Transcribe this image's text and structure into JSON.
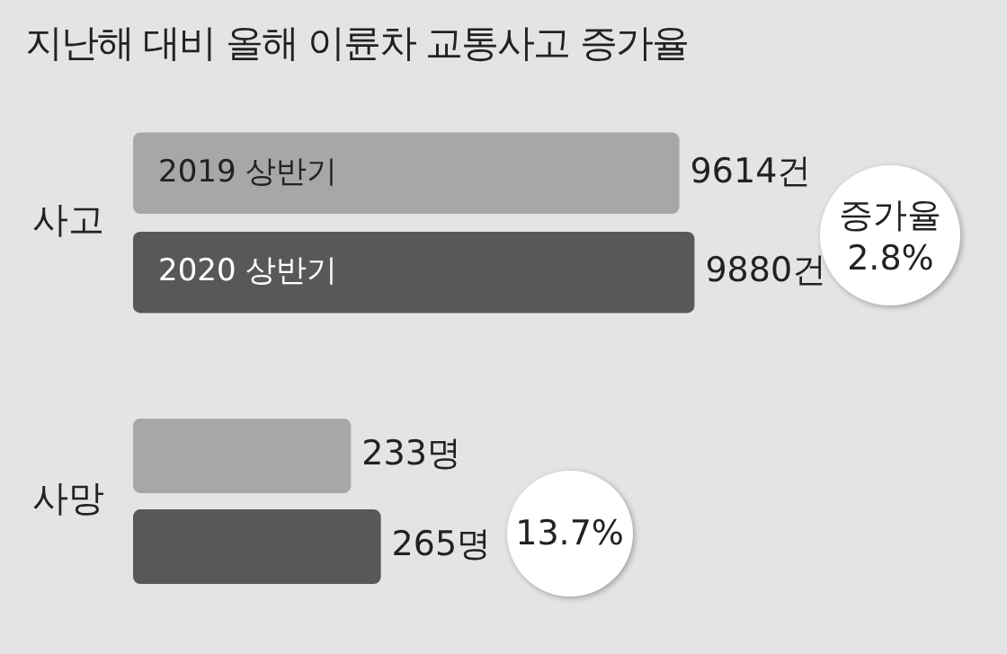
{
  "chart_data": [
    {
      "type": "bar",
      "orientation": "horizontal",
      "title": "지난해 대비 올해 이륜차 교통사고 증가율",
      "categories": [
        "사고"
      ],
      "tick_labels": "y",
      "legend": false,
      "series": [
        {
          "name": "2019 상반기",
          "color": "#a7a7aa",
          "values": [
            9614
          ],
          "value_labels": [
            "9614건"
          ]
        },
        {
          "name": "2020 상반기",
          "color": "#58585a",
          "values": [
            9880
          ],
          "value_labels": [
            "9880건"
          ]
        }
      ],
      "annotations": [
        "증가율 2.8%"
      ]
    },
    {
      "type": "bar",
      "orientation": "horizontal",
      "categories": [
        "사망"
      ],
      "tick_labels": "y",
      "legend": false,
      "series": [
        {
          "color": "#a7a7aa",
          "values": [
            233
          ],
          "value_labels": [
            "233명"
          ]
        },
        {
          "color": "#58585a",
          "values": [
            265
          ],
          "value_labels": [
            "265명"
          ]
        }
      ],
      "annotations": [
        "13.7%"
      ]
    }
  ]
}
